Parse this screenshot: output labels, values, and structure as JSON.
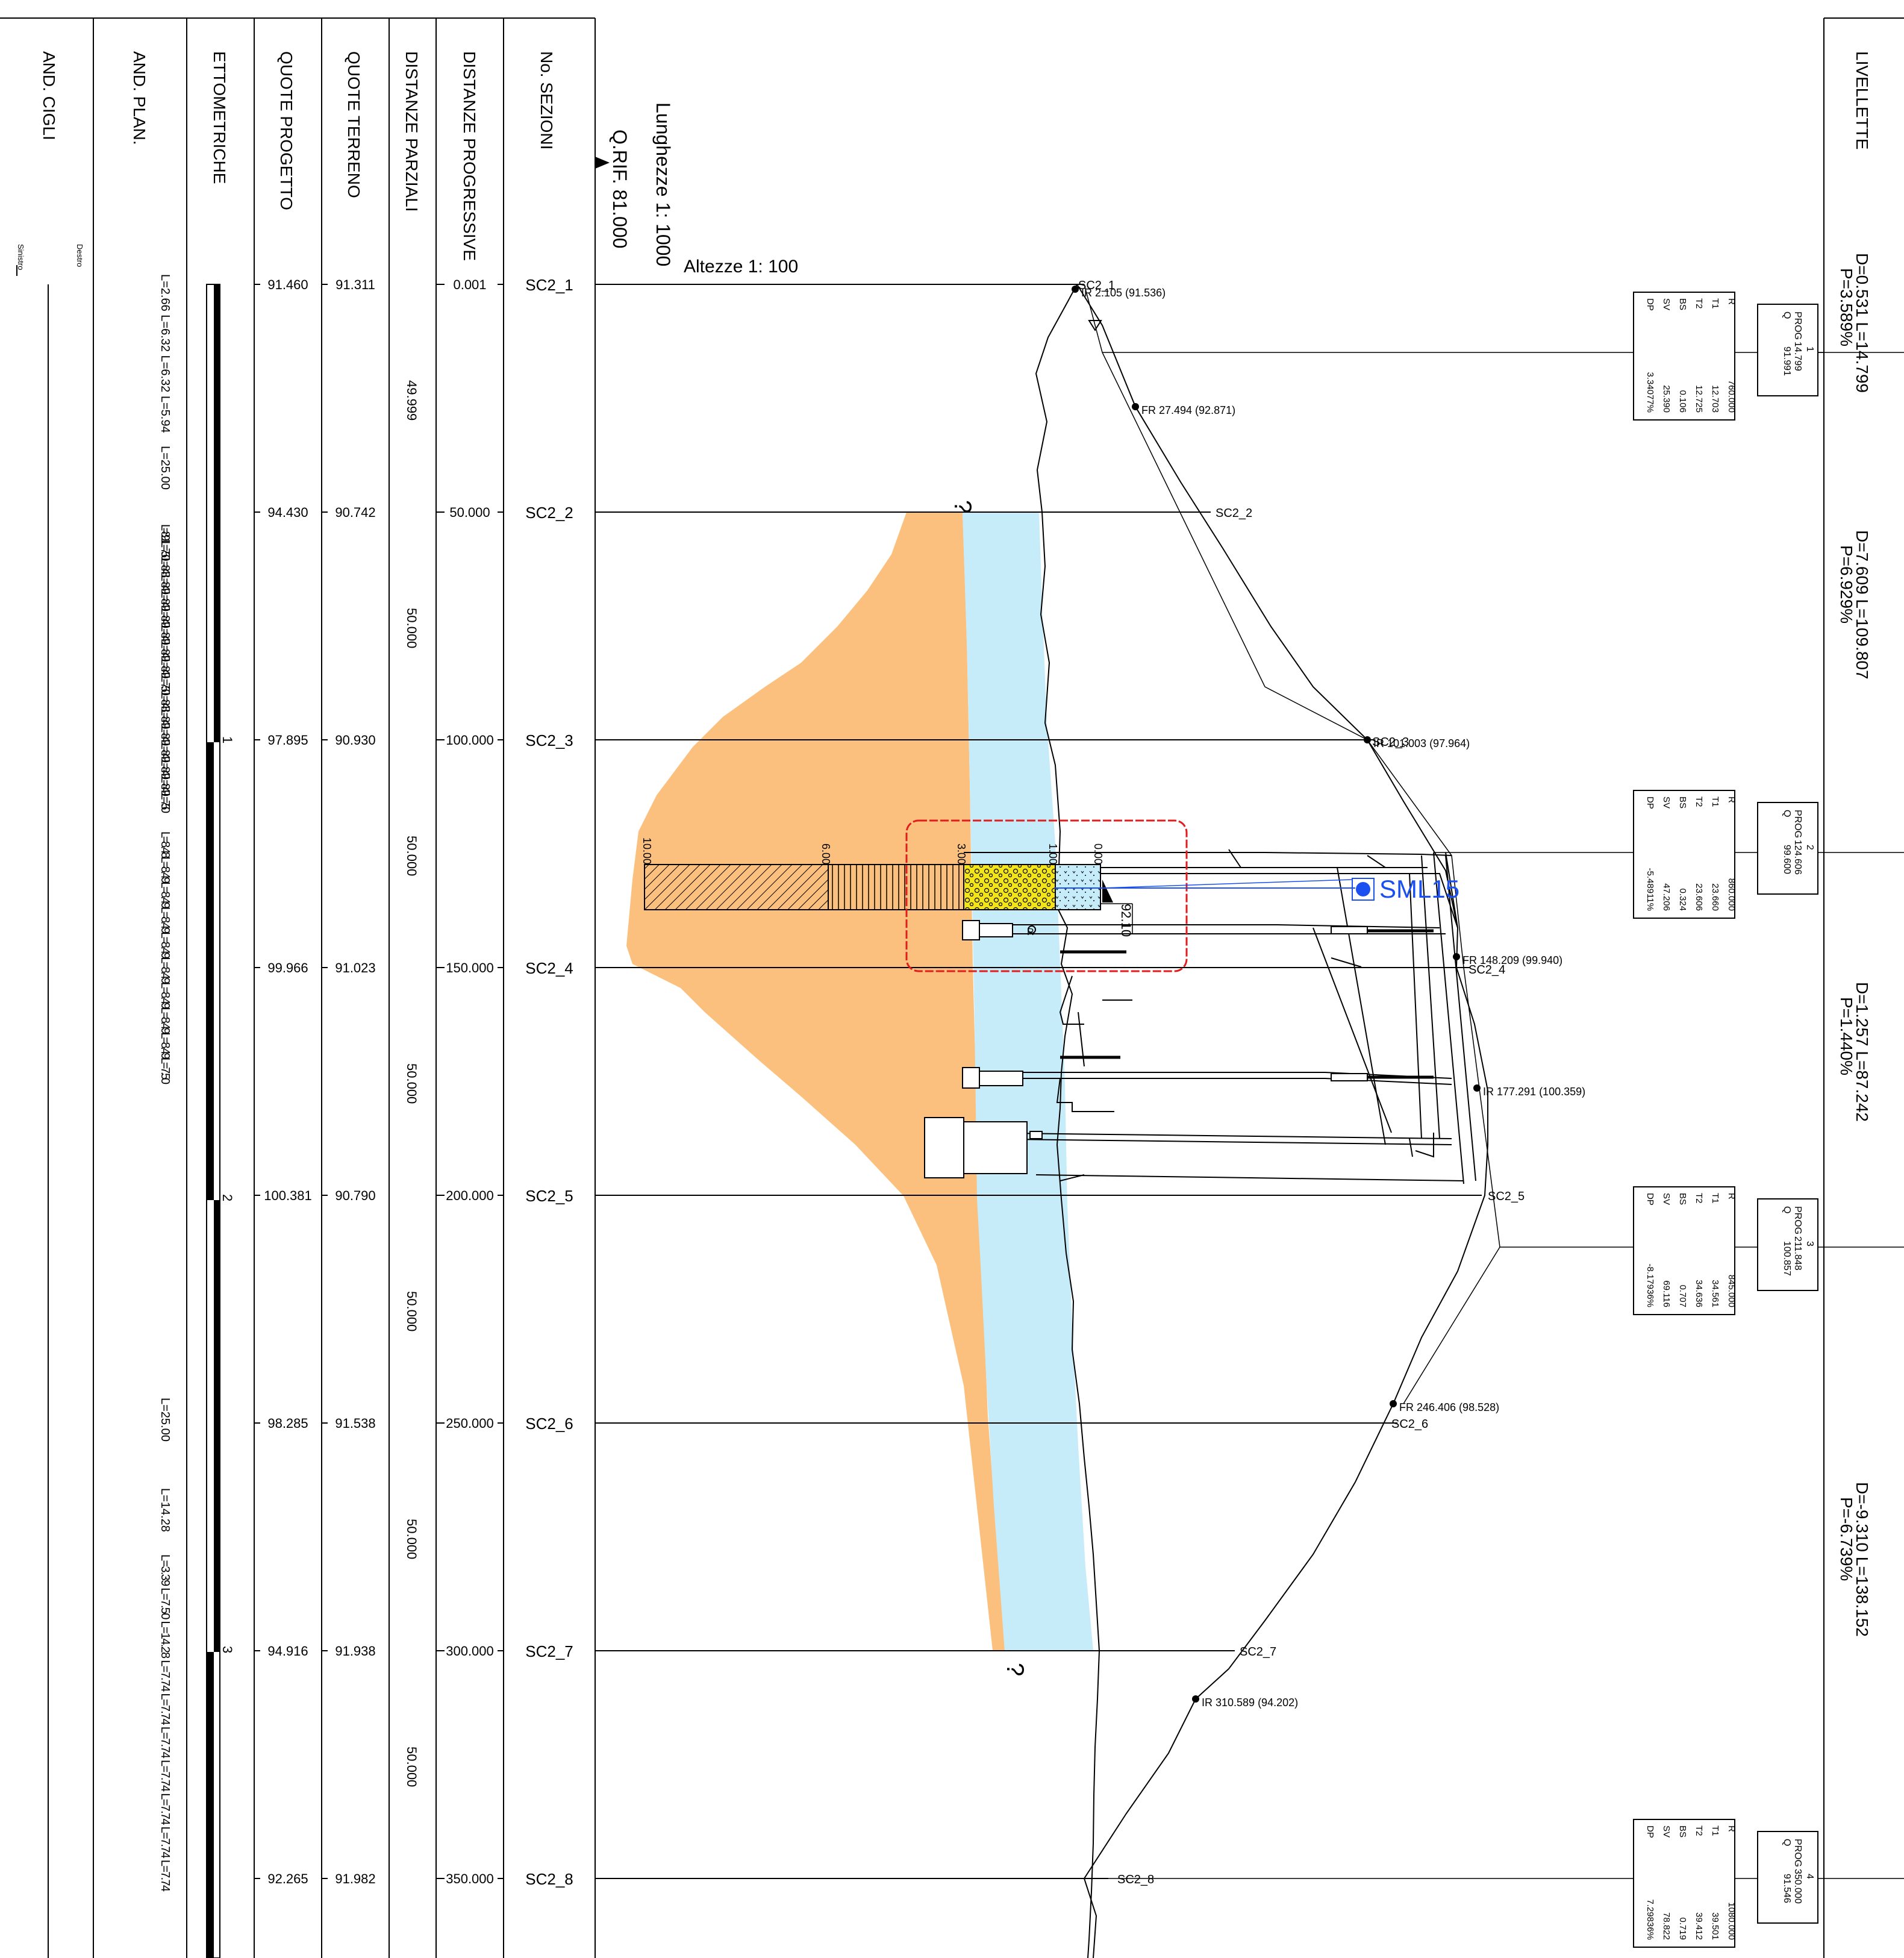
{
  "header": {
    "row_labels": [
      "AND. CIGLI",
      "AND. PLAN.",
      "ETTOMETRICHE",
      "QUOTE PROGETTO",
      "QUOTE TERRENO",
      "DISTANZE PARZIALI",
      "DISTANZE PROGRESSIVE",
      "No. SEZIONI"
    ],
    "side_left": "Sinistro",
    "side_right": "Destro",
    "scale_length": "Lunghezze 1: 1000",
    "scale_height": "Altezze 1: 100",
    "reference": "Q.RIF. 81.000",
    "livellette_title": "LIVELLETTE"
  },
  "sections": [
    {
      "id": "SC2_1",
      "prog": "0.001",
      "terreno": "91.311",
      "progetto": "91.460"
    },
    {
      "id": "SC2_2",
      "prog": "50.000",
      "terreno": "90.742",
      "progetto": "94.430"
    },
    {
      "id": "SC2_3",
      "prog": "100.000",
      "terreno": "90.930",
      "progetto": "97.895"
    },
    {
      "id": "SC2_4",
      "prog": "150.000",
      "terreno": "91.023",
      "progetto": "99.966"
    },
    {
      "id": "SC2_5",
      "prog": "200.000",
      "terreno": "90.790",
      "progetto": "100.381"
    },
    {
      "id": "SC2_6",
      "prog": "250.000",
      "terreno": "91.538",
      "progetto": "98.285"
    },
    {
      "id": "SC2_7",
      "prog": "300.000",
      "terreno": "91.938",
      "progetto": "94.916"
    },
    {
      "id": "SC2_8",
      "prog": "350.000",
      "terreno": "91.982",
      "progetto": "92.265"
    }
  ],
  "partial_distances": [
    "49.999",
    "50.000",
    "50.000",
    "50.000",
    "50.000",
    "50.000",
    "50.000"
  ],
  "ettometriche": [
    "1",
    "2",
    "3"
  ],
  "and_plan": [
    "L=2.66 L=6.32 L=6.32 L=5.94",
    "L=25.00",
    "L=8.91 L=7.50 L=8.48 L=8.49 L=8.49 L=8.49 L=8.49 L=8.49 L=8.49 L=7.50 L=8.48 L=8.49 L=8.49 L=8.49 L=8.49 L=8.49 L=7.50",
    "L=8.48L=8.49L=8.49L=8.49L=8.49L=8.49L=8.49L=8.49L=8.49L=7.50",
    "L=25.00",
    "L=14.28",
    "L=3.39 L=7.50 L=14.28 L=7.74 L=7.74 L=7.74 L=7.74 L=7.74 L=7.74 L=7.74"
  ],
  "livellette": [
    {
      "line1": "D=0.531 L=14.799",
      "line2": "P=3.589%"
    },
    {
      "line1": "D=7.609 L=109.807",
      "line2": "P=6.929%"
    },
    {
      "line1": "D=1.257 L=87.242",
      "line2": "P=1.440%"
    },
    {
      "line1": "D=-9.310 L=138.152",
      "line2": "P=-6.739%"
    }
  ],
  "vertical_curves": [
    {
      "num": "1",
      "prog_label": "PROG",
      "prog": "14.799",
      "q_label": "Q",
      "q": "91.991",
      "keys": [
        "R",
        "T1",
        "T2",
        "BS",
        "SV",
        "DP"
      ],
      "values": [
        "760.000",
        "12.703",
        "12.725",
        "0.106",
        "25.390",
        "3.34077%"
      ]
    },
    {
      "num": "2",
      "prog_label": "PROG",
      "prog": "124.606",
      "q_label": "Q",
      "q": "99.600",
      "keys": [
        "R",
        "T1",
        "T2",
        "BS",
        "SV",
        "DP"
      ],
      "values": [
        "860.000",
        "23.660",
        "23.606",
        "0.324",
        "47.206",
        "-5.48911%"
      ]
    },
    {
      "num": "3",
      "prog_label": "PROG",
      "prog": "211.848",
      "q_label": "Q",
      "q": "100.857",
      "keys": [
        "R",
        "T1",
        "T2",
        "BS",
        "SV",
        "DP"
      ],
      "values": [
        "845.000",
        "34.561",
        "34.636",
        "0.707",
        "69.116",
        "-8.17936%"
      ]
    },
    {
      "num": "4",
      "prog_label": "PROG",
      "prog": "350.000",
      "q_label": "Q",
      "q": "91.546",
      "keys": [
        "R",
        "T1",
        "T2",
        "BS",
        "SV",
        "DP"
      ],
      "values": [
        "1080.000",
        "39.501",
        "39.412",
        "0.719",
        "78.822",
        "7.29836%"
      ]
    }
  ],
  "profile_points": [
    {
      "label": "IR",
      "prog": "2.105",
      "q": "(91.536)"
    },
    {
      "label": "FR",
      "prog": "27.494",
      "q": "(92.871)"
    },
    {
      "label": "IR",
      "prog": "101.003",
      "q": "(97.964)"
    },
    {
      "label": "FR",
      "prog": "148.209",
      "q": "(99.940)"
    },
    {
      "label": "IR",
      "prog": "177.291",
      "q": "(100.359)"
    },
    {
      "label": "FR",
      "prog": "246.406",
      "q": "(98.528)"
    },
    {
      "label": "IR",
      "prog": "310.589",
      "q": "(94.202)"
    }
  ],
  "annotations": {
    "question_mark": "?",
    "sml_tag": "SML15",
    "elevation_tag": "92.10",
    "layer_depths": [
      "10.00",
      "6.00",
      "3.00",
      "1.00",
      "0.00"
    ],
    "small_r": "R"
  },
  "colors": {
    "orange_fill": "#fbc07e",
    "water_fill": "#c6ecfa",
    "gravel_fill": "#f2e31a",
    "cloud_red": "#e01e1e",
    "sml_blue": "#1a4ff0"
  }
}
